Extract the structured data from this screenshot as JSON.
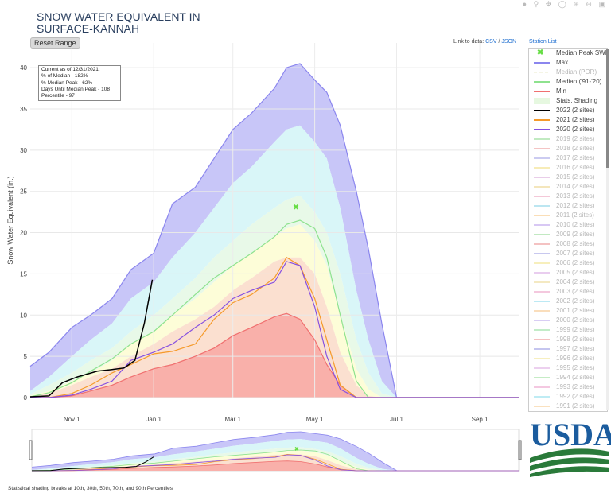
{
  "title": [
    "SNOW WATER EQUIVALENT IN",
    "SURFACE-KANNAH"
  ],
  "toolbar": {
    "icons": [
      "camera-icon",
      "zoom-icon",
      "pan-icon",
      "select-icon",
      "zoom-in-icon",
      "zoom-out-icon",
      "autoscale-icon"
    ]
  },
  "reset_button": "Reset Range",
  "links": {
    "prefix": "Link to data:",
    "csv": "CSV",
    "separator": "/",
    "json": "JSON",
    "station_list": "Station List"
  },
  "info_box": [
    "Current as of 12/31/2021:",
    "% of Median - 182%",
    "% Median Peak - 62%",
    "Days Until Median Peak - 108",
    "Percentile - 97"
  ],
  "footnote": "Statistical shading breaks at 10th, 30th, 50th, 70th, and 90th Percentiles",
  "logo_text": "USDA",
  "colors": {
    "max": "#8b86ee",
    "max_fill": "#c8c6f8",
    "median_por": "#dcdcaa",
    "median_9120": "#8ee28e",
    "min": "#f07070",
    "y2022": "#000000",
    "y2021": "#f59a2a",
    "y2020": "#8650e0",
    "p90": "#d9f6f8",
    "p70": "#e8f9e8",
    "p50": "#fdfdd8",
    "p30": "#fbe0d0",
    "p10": "#f9b0aa",
    "peak_marker": "#66dd44",
    "link": "#1f6fd0"
  },
  "legend": [
    {
      "label": "Median Peak SWE",
      "color": "#66dd44",
      "kind": "marker",
      "dim": false
    },
    {
      "label": "Max",
      "color": "#8b86ee",
      "kind": "line",
      "dim": false
    },
    {
      "label": "Median (POR)",
      "color": "#e3e3b5",
      "kind": "dash",
      "dim": true
    },
    {
      "label": "Median ('91-'20)",
      "color": "#8ee28e",
      "kind": "line",
      "dim": false
    },
    {
      "label": "Min",
      "color": "#f07070",
      "kind": "line",
      "dim": false
    },
    {
      "label": "Stats. Shading",
      "color": "#e6f8e0",
      "kind": "band",
      "dim": false
    },
    {
      "label": "2022 (2 sites)",
      "color": "#000000",
      "kind": "line",
      "dim": false
    },
    {
      "label": "2021 (2 sites)",
      "color": "#f59a2a",
      "kind": "line",
      "dim": false
    },
    {
      "label": "2020 (2 sites)",
      "color": "#8650e0",
      "kind": "line",
      "dim": false
    },
    {
      "label": "2019 (2 sites)",
      "color": "#4cc44c",
      "kind": "line",
      "dim": true
    },
    {
      "label": "2018 (2 sites)",
      "color": "#e05555",
      "kind": "line",
      "dim": true
    },
    {
      "label": "2017 (2 sites)",
      "color": "#6a6ad8",
      "kind": "line",
      "dim": true
    },
    {
      "label": "2016 (2 sites)",
      "color": "#e8c830",
      "kind": "line",
      "dim": true
    },
    {
      "label": "2015 (2 sites)",
      "color": "#c070c0",
      "kind": "line",
      "dim": true
    },
    {
      "label": "2014 (2 sites)",
      "color": "#e0b840",
      "kind": "line",
      "dim": true
    },
    {
      "label": "2013 (2 sites)",
      "color": "#e06090",
      "kind": "line",
      "dim": true
    },
    {
      "label": "2012 (2 sites)",
      "color": "#40b8d8",
      "kind": "line",
      "dim": true
    },
    {
      "label": "2011 (2 sites)",
      "color": "#f0a030",
      "kind": "line",
      "dim": true
    },
    {
      "label": "2010 (2 sites)",
      "color": "#9060e0",
      "kind": "line",
      "dim": true
    },
    {
      "label": "2009 (2 sites)",
      "color": "#50c050",
      "kind": "line",
      "dim": true
    },
    {
      "label": "2008 (2 sites)",
      "color": "#e05050",
      "kind": "line",
      "dim": true
    },
    {
      "label": "2007 (2 sites)",
      "color": "#6060d0",
      "kind": "line",
      "dim": true
    },
    {
      "label": "2006 (2 sites)",
      "color": "#e8d040",
      "kind": "line",
      "dim": true
    },
    {
      "label": "2005 (2 sites)",
      "color": "#c070d0",
      "kind": "line",
      "dim": true
    },
    {
      "label": "2004 (2 sites)",
      "color": "#e0c050",
      "kind": "line",
      "dim": true
    },
    {
      "label": "2003 (2 sites)",
      "color": "#e060a0",
      "kind": "line",
      "dim": true
    },
    {
      "label": "2002 (2 sites)",
      "color": "#40c0e0",
      "kind": "line",
      "dim": true
    },
    {
      "label": "2001 (2 sites)",
      "color": "#f0a040",
      "kind": "line",
      "dim": true
    },
    {
      "label": "2000 (2 sites)",
      "color": "#9070e0",
      "kind": "line",
      "dim": true
    },
    {
      "label": "1999 (2 sites)",
      "color": "#50c860",
      "kind": "line",
      "dim": true
    },
    {
      "label": "1998 (2 sites)",
      "color": "#e04848",
      "kind": "line",
      "dim": true
    },
    {
      "label": "1997 (2 sites)",
      "color": "#5858d0",
      "kind": "line",
      "dim": true
    },
    {
      "label": "1996 (2 sites)",
      "color": "#e8d048",
      "kind": "line",
      "dim": true
    },
    {
      "label": "1995 (2 sites)",
      "color": "#c878d0",
      "kind": "line",
      "dim": true
    },
    {
      "label": "1994 (2 sites)",
      "color": "#58c858",
      "kind": "line",
      "dim": true
    },
    {
      "label": "1993 (2 sites)",
      "color": "#e060a8",
      "kind": "line",
      "dim": true
    },
    {
      "label": "1992 (2 sites)",
      "color": "#48c8e0",
      "kind": "line",
      "dim": true
    },
    {
      "label": "1991 (2 sites)",
      "color": "#f0a848",
      "kind": "line",
      "dim": true
    }
  ],
  "chart_data": {
    "type": "area",
    "title": "SNOW WATER EQUIVALENT IN SURFACE-KANNAH",
    "xlabel": "",
    "ylabel": "Snow Water Equivalent (in.)",
    "xlim": [
      "2021-10-01",
      "2022-09-30"
    ],
    "ylim": [
      0,
      43
    ],
    "x_ticks": [
      {
        "date": "2021-11-01",
        "label": "Nov 1"
      },
      {
        "date": "2022-01-01",
        "label": "Jan 1"
      },
      {
        "date": "2022-03-01",
        "label": "Mar 1"
      },
      {
        "date": "2022-05-01",
        "label": "May 1"
      },
      {
        "date": "2022-07-01",
        "label": "Jul 1"
      },
      {
        "date": "2022-09-01",
        "label": "Sep 1"
      }
    ],
    "y_ticks": [
      0,
      5,
      10,
      15,
      20,
      25,
      30,
      35,
      40
    ],
    "grid": true,
    "legend_position": "right",
    "x": [
      "2021-10-01",
      "2021-10-15",
      "2021-11-01",
      "2021-11-15",
      "2021-12-01",
      "2021-12-15",
      "2022-01-01",
      "2022-01-15",
      "2022-02-01",
      "2022-02-15",
      "2022-03-01",
      "2022-03-15",
      "2022-04-01",
      "2022-04-10",
      "2022-04-20",
      "2022-05-01",
      "2022-05-10",
      "2022-05-20",
      "2022-06-01",
      "2022-06-10",
      "2022-06-20",
      "2022-07-01",
      "2022-07-15",
      "2022-08-01",
      "2022-09-01",
      "2022-09-30"
    ],
    "bands": {
      "max": [
        3.8,
        5.5,
        8.5,
        10.0,
        12.0,
        15.5,
        17.5,
        23.5,
        25.5,
        29.0,
        32.5,
        34.5,
        37.5,
        40.0,
        40.5,
        38.5,
        37.0,
        33.0,
        25.0,
        18.0,
        9.0,
        0,
        0,
        0,
        0,
        0
      ],
      "p90": [
        0.8,
        2.5,
        5.0,
        7.0,
        9.0,
        12.0,
        14.0,
        17.0,
        20.0,
        23.0,
        26.0,
        28.0,
        31.0,
        32.5,
        33.0,
        31.0,
        29.0,
        23.0,
        13.0,
        7.0,
        2.0,
        0,
        0,
        0,
        0,
        0
      ],
      "p70": [
        0.4,
        1.5,
        3.0,
        4.5,
        6.0,
        8.0,
        10.0,
        12.0,
        14.5,
        17.0,
        19.0,
        21.0,
        23.0,
        24.0,
        24.5,
        22.5,
        20.0,
        15.0,
        7.0,
        3.0,
        0.5,
        0,
        0,
        0,
        0,
        0
      ],
      "p50": [
        0.2,
        0.8,
        2.0,
        3.0,
        4.5,
        6.5,
        8.0,
        10.0,
        12.0,
        14.0,
        16.0,
        17.5,
        19.5,
        20.5,
        21.0,
        19.0,
        16.0,
        10.0,
        3.5,
        1.0,
        0,
        0,
        0,
        0,
        0,
        0
      ],
      "p30": [
        0.1,
        0.5,
        1.5,
        2.5,
        3.5,
        5.0,
        6.5,
        8.0,
        9.5,
        11.0,
        13.0,
        14.5,
        16.5,
        17.0,
        17.0,
        15.0,
        11.0,
        5.5,
        1.5,
        0.2,
        0,
        0,
        0,
        0,
        0,
        0
      ],
      "p10": [
        0,
        0,
        0.2,
        0.8,
        1.5,
        2.5,
        3.5,
        4.0,
        5.0,
        6.0,
        7.5,
        8.5,
        9.8,
        10.2,
        9.5,
        7.0,
        4.0,
        1.5,
        0,
        0,
        0,
        0,
        0,
        0,
        0,
        0
      ],
      "min": [
        0,
        0,
        0.2,
        0.8,
        1.5,
        2.5,
        3.5,
        4.0,
        5.0,
        6.0,
        7.5,
        8.5,
        9.8,
        10.2,
        9.5,
        7.0,
        4.0,
        1.5,
        0,
        0,
        0,
        0,
        0,
        0,
        0,
        0
      ]
    },
    "series": [
      {
        "name": "Max",
        "color_key": "max",
        "values": [
          3.8,
          5.5,
          8.5,
          10.0,
          12.0,
          15.5,
          17.5,
          23.5,
          25.5,
          29.0,
          32.5,
          34.5,
          37.5,
          40.0,
          40.5,
          38.5,
          37.0,
          33.0,
          25.0,
          18.0,
          9.0,
          0,
          0,
          0,
          0,
          0
        ]
      },
      {
        "name": "Median ('91-'20)",
        "color_key": "median_9120",
        "values": [
          0.1,
          0.6,
          1.8,
          3.2,
          4.7,
          6.5,
          8.0,
          10.0,
          12.5,
          14.5,
          16.0,
          17.5,
          19.5,
          21.0,
          21.5,
          20.5,
          17.0,
          10.0,
          2.0,
          0,
          0,
          0,
          0,
          0,
          0,
          0
        ]
      },
      {
        "name": "Min",
        "color_key": "min",
        "values": [
          0,
          0,
          0.2,
          0.8,
          1.5,
          2.5,
          3.5,
          4.0,
          5.0,
          6.0,
          7.5,
          8.5,
          9.8,
          10.2,
          9.5,
          7.0,
          4.0,
          1.5,
          0,
          0,
          0,
          0,
          0,
          0,
          0,
          0
        ]
      },
      {
        "name": "2021 (2 sites)",
        "color_key": "y2021",
        "values": [
          0,
          0,
          0.5,
          1.5,
          3.0,
          4.0,
          5.3,
          5.6,
          6.5,
          9.5,
          11.5,
          12.5,
          14.5,
          17.0,
          16.0,
          12.0,
          7.0,
          1.5,
          0,
          0,
          0,
          0,
          0,
          0,
          0,
          0
        ]
      },
      {
        "name": "2020 (2 sites)",
        "color_key": "y2020",
        "values": [
          0,
          0,
          0.3,
          1.0,
          2.0,
          4.5,
          5.5,
          6.5,
          8.5,
          10.0,
          12.0,
          13.0,
          14.0,
          16.5,
          16.0,
          11.0,
          5.0,
          1.0,
          0,
          0,
          0,
          0,
          0,
          0,
          0,
          0
        ]
      }
    ],
    "current_year": {
      "name": "2022 (2 sites)",
      "x": [
        "2021-10-01",
        "2021-10-15",
        "2021-10-25",
        "2021-11-05",
        "2021-11-20",
        "2021-12-01",
        "2021-12-10",
        "2021-12-18",
        "2021-12-25",
        "2021-12-31"
      ],
      "values": [
        0.1,
        0.2,
        1.8,
        2.5,
        3.2,
        3.4,
        3.6,
        4.5,
        9.0,
        14.3
      ]
    },
    "median_peak": {
      "date": "2022-04-17",
      "value": 23.1,
      "label": "Median Peak SWE"
    }
  }
}
